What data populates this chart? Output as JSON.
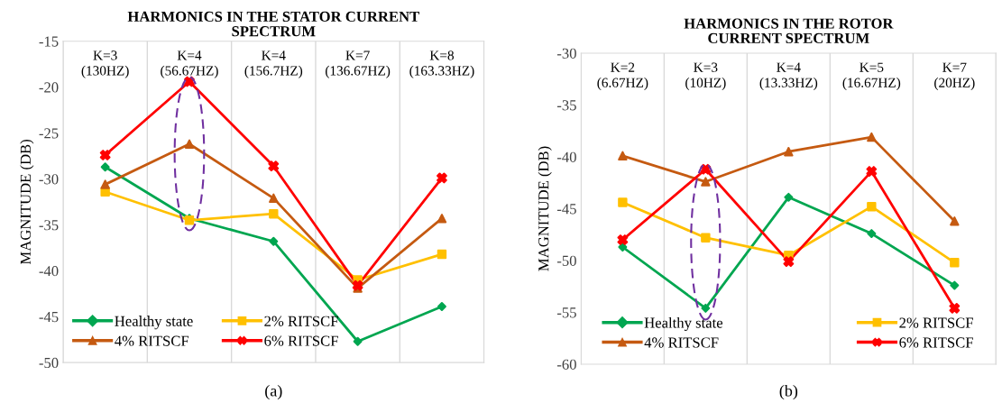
{
  "chart_data": [
    {
      "type": "line",
      "title": "HARMONICS IN THE STATOR CURRENT\nSPECTRUM",
      "ylabel": "MAGNITUDE (DB)",
      "categories": [
        "K=3\n(130HZ)",
        "K=4\n(56.67HZ)",
        "K=4\n(156.7HZ)",
        "K=7\n(136.67HZ)",
        "K=8\n(163.33HZ)"
      ],
      "series": [
        {
          "name": "Healthy state",
          "color": "#00a650",
          "marker": "diamond",
          "values": [
            -28.7,
            -34.3,
            -36.8,
            -47.7,
            -43.9
          ]
        },
        {
          "name": "2% RITSCF",
          "color": "#ffc000",
          "marker": "square",
          "values": [
            -31.4,
            -34.5,
            -33.8,
            -41.0,
            -38.2
          ]
        },
        {
          "name": "4% RITSCF",
          "color": "#c55a11",
          "marker": "triangle",
          "values": [
            -30.6,
            -26.2,
            -32.1,
            -41.9,
            -34.3
          ]
        },
        {
          "name": "6% RITSCF",
          "color": "#ff0000",
          "marker": "cross",
          "values": [
            -27.4,
            -19.4,
            -28.6,
            -41.6,
            -29.9
          ]
        }
      ],
      "ylim": [
        -50,
        -15
      ],
      "yticks": [
        -50,
        -45,
        -40,
        -35,
        -30,
        -25,
        -20,
        -15
      ],
      "grid": "x",
      "legend": "bottom",
      "annotations": [
        "(a)"
      ]
    },
    {
      "type": "line",
      "title": "HARMONICS IN THE ROTOR\nCURRENT SPECTRUM",
      "ylabel": "MAGNITUDE (DB)",
      "categories": [
        "K=2\n(6.67HZ)",
        "K=3\n(10HZ)",
        "K=4\n(13.33HZ)",
        "K=5\n(16.67HZ)",
        "K=7\n(20HZ)"
      ],
      "series": [
        {
          "name": "Healthy state",
          "color": "#00a650",
          "marker": "diamond",
          "values": [
            -48.7,
            -54.6,
            -43.9,
            -47.4,
            -52.4
          ]
        },
        {
          "name": "2% RITSCF",
          "color": "#ffc000",
          "marker": "square",
          "values": [
            -44.4,
            -47.8,
            -49.5,
            -44.8,
            -50.2
          ]
        },
        {
          "name": "4% RITSCF",
          "color": "#c55a11",
          "marker": "triangle",
          "values": [
            -39.9,
            -42.4,
            -39.5,
            -38.1,
            -46.2
          ]
        },
        {
          "name": "6% RITSCF",
          "color": "#ff0000",
          "marker": "cross",
          "values": [
            -48.0,
            -41.2,
            -50.1,
            -41.4,
            -54.6
          ]
        }
      ],
      "ylim": [
        -60,
        -30
      ],
      "yticks": [
        -60,
        -55,
        -50,
        -45,
        -40,
        -35,
        -30
      ],
      "grid": "x",
      "legend": "bottom",
      "annotations": [
        "(b)"
      ]
    }
  ]
}
